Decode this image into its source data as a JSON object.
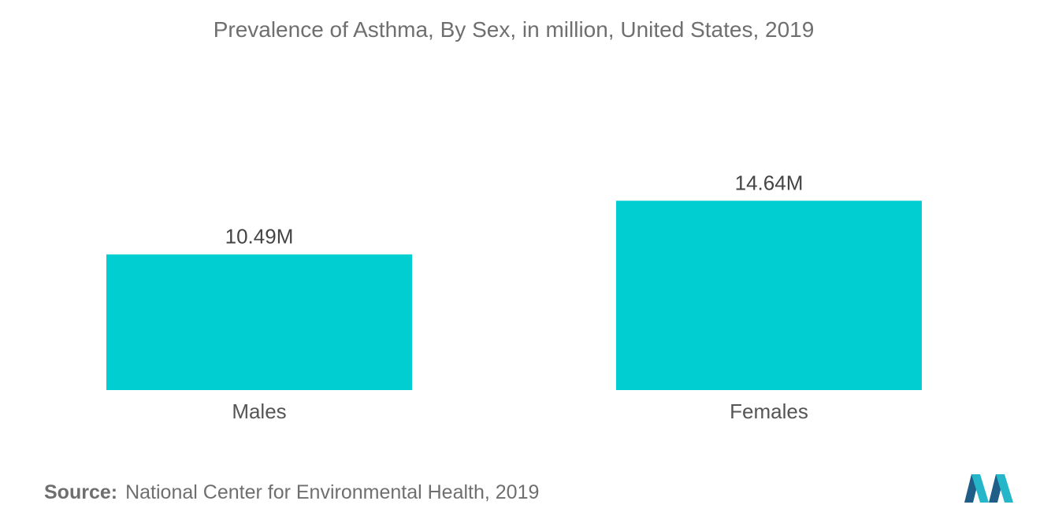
{
  "chart_data": {
    "type": "bar",
    "title": "Prevalence of Asthma, By Sex, in million, United States, 2019",
    "categories": [
      "Males",
      "Females"
    ],
    "values": [
      10.49,
      14.64
    ],
    "value_labels": [
      "10.49M",
      "14.64M"
    ],
    "ylim": [
      0,
      22.5
    ],
    "grid": false,
    "legend": "none",
    "bar_color": "#00CED1"
  },
  "source": {
    "label": "Source:",
    "text": "National Center for Environmental Health, 2019"
  },
  "colors": {
    "bar": "#00CED1",
    "logo_dark": "#1f5f87",
    "logo_light": "#25b7c9"
  }
}
